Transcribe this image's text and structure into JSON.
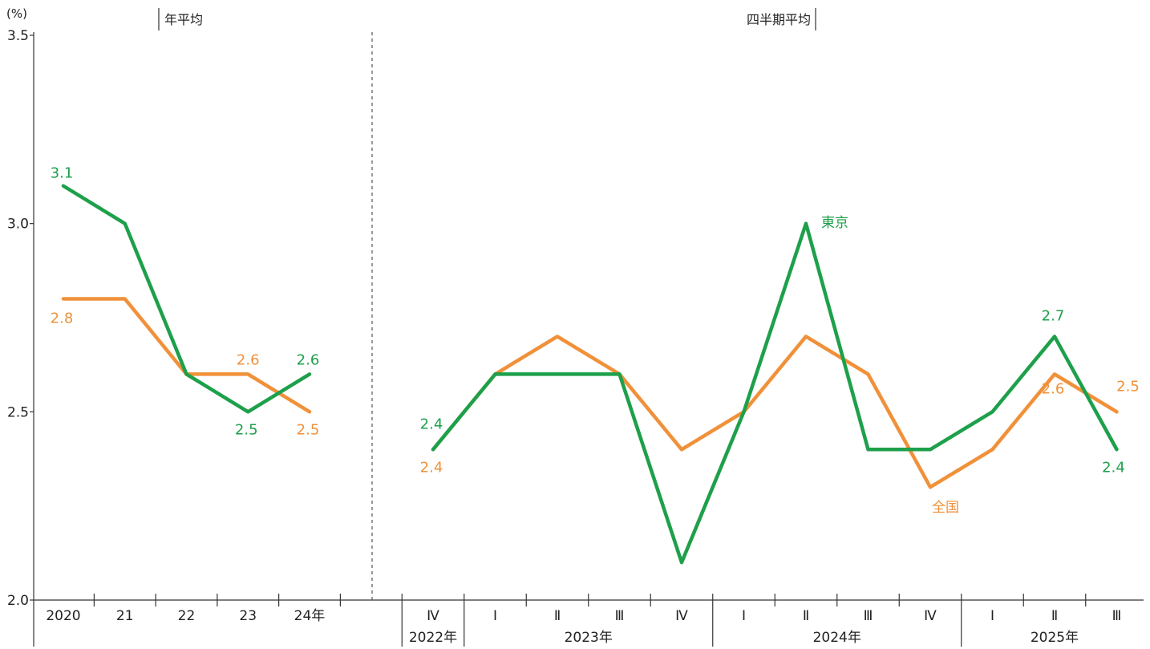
{
  "chart_data": {
    "type": "line",
    "unit": "(%)",
    "ylim": [
      2.0,
      3.5
    ],
    "yticks": [
      "2.0",
      "2.5",
      "3.0",
      "3.5"
    ],
    "sections": {
      "annual_title": "年平均",
      "quarterly_title": "四半期平均"
    },
    "annual": {
      "categories": [
        "2020",
        "21",
        "22",
        "23",
        "24年"
      ],
      "series": [
        {
          "name": "東京",
          "color": "#1ea04b",
          "values": [
            3.1,
            3.0,
            2.6,
            2.5,
            2.6
          ]
        },
        {
          "name": "全国",
          "color": "#f0913a",
          "values": [
            2.8,
            2.8,
            2.6,
            2.6,
            2.5
          ]
        }
      ]
    },
    "quarterly": {
      "categories": [
        "Ⅳ",
        "Ⅰ",
        "Ⅱ",
        "Ⅲ",
        "Ⅳ",
        "Ⅰ",
        "Ⅱ",
        "Ⅲ",
        "Ⅳ",
        "Ⅰ",
        "Ⅱ",
        "Ⅲ"
      ],
      "year_groups": [
        {
          "label": "2022年",
          "start": 0,
          "end": 0
        },
        {
          "label": "2023年",
          "start": 1,
          "end": 4
        },
        {
          "label": "2024年",
          "start": 5,
          "end": 8
        },
        {
          "label": "2025年",
          "start": 9,
          "end": 11
        }
      ],
      "series": [
        {
          "name": "東京",
          "color": "#1ea04b",
          "values": [
            2.4,
            2.6,
            2.6,
            2.6,
            2.1,
            2.5,
            3.0,
            2.4,
            2.4,
            2.5,
            2.7,
            2.4
          ]
        },
        {
          "name": "全国",
          "color": "#f0913a",
          "values": [
            2.4,
            2.6,
            2.7,
            2.6,
            2.4,
            2.5,
            2.7,
            2.6,
            2.3,
            2.4,
            2.6,
            2.5
          ]
        }
      ]
    },
    "data_labels": {
      "annual": [
        {
          "series": "東京",
          "index": 0,
          "text": "3.1"
        },
        {
          "series": "全国",
          "index": 0,
          "text": "2.8"
        },
        {
          "series": "全国",
          "index": 3,
          "text": "2.6"
        },
        {
          "series": "東京",
          "index": 3,
          "text": "2.5"
        },
        {
          "series": "東京",
          "index": 4,
          "text": "2.6"
        },
        {
          "series": "全国",
          "index": 4,
          "text": "2.5"
        }
      ],
      "quarterly": [
        {
          "series": "東京",
          "index": 0,
          "text": "2.4"
        },
        {
          "series": "全国",
          "index": 0,
          "text": "2.4"
        },
        {
          "series": "東京",
          "index": 10,
          "text": "2.7"
        },
        {
          "series": "全国",
          "index": 10,
          "text": "2.6"
        },
        {
          "series": "全国",
          "index": 11,
          "text": "2.5"
        },
        {
          "series": "東京",
          "index": 11,
          "text": "2.4"
        }
      ]
    },
    "series_labels": [
      {
        "text": "東京",
        "color": "#1ea04b"
      },
      {
        "text": "全国",
        "color": "#f0913a"
      }
    ]
  }
}
